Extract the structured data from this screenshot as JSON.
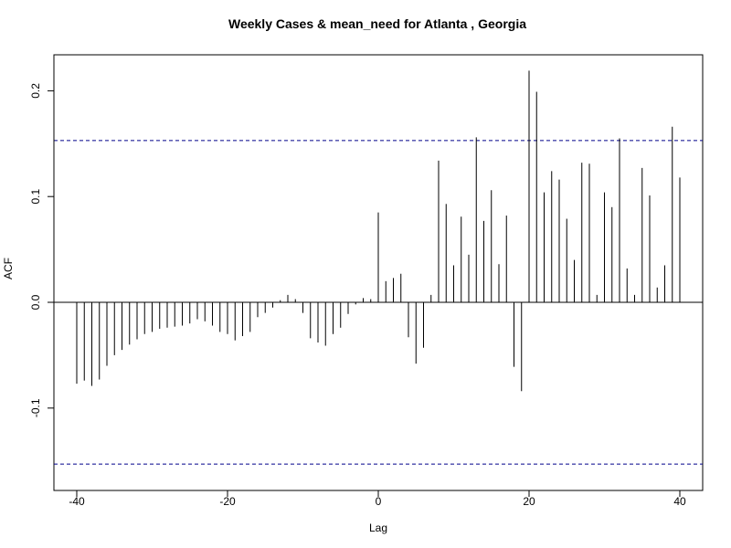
{
  "chart_data": {
    "type": "bar",
    "title": "Weekly Cases & mean_need for Atlanta , Georgia",
    "xlabel": "Lag",
    "ylabel": "ACF",
    "xlim": [
      -40,
      40
    ],
    "ylim": [
      -0.1695,
      0.2165
    ],
    "x_ticks": [
      -40,
      -20,
      0,
      20,
      40
    ],
    "y_ticks": [
      -0.1,
      0.0,
      0.1,
      0.2
    ],
    "y_tick_labels": [
      "-0.1",
      "0.0",
      "0.1",
      "0.2"
    ],
    "confidence_limits": [
      0.153,
      -0.153
    ],
    "confidence_line_color": "#00008b",
    "x": [
      -40,
      -39,
      -38,
      -37,
      -36,
      -35,
      -34,
      -33,
      -32,
      -31,
      -30,
      -29,
      -28,
      -27,
      -26,
      -25,
      -24,
      -23,
      -22,
      -21,
      -20,
      -19,
      -18,
      -17,
      -16,
      -15,
      -14,
      -13,
      -12,
      -11,
      -10,
      -9,
      -8,
      -7,
      -6,
      -5,
      -4,
      -3,
      -2,
      -1,
      0,
      1,
      2,
      3,
      4,
      5,
      6,
      7,
      8,
      9,
      10,
      11,
      12,
      13,
      14,
      15,
      16,
      17,
      18,
      19,
      20,
      21,
      22,
      23,
      24,
      25,
      26,
      27,
      28,
      29,
      30,
      31,
      32,
      33,
      34,
      35,
      36,
      37,
      38,
      39,
      40
    ],
    "values": [
      -0.077,
      -0.074,
      -0.079,
      -0.073,
      -0.06,
      -0.05,
      -0.045,
      -0.04,
      -0.035,
      -0.03,
      -0.028,
      -0.025,
      -0.024,
      -0.023,
      -0.022,
      -0.02,
      -0.016,
      -0.018,
      -0.022,
      -0.028,
      -0.03,
      -0.036,
      -0.032,
      -0.028,
      -0.014,
      -0.01,
      -0.005,
      0.002,
      0.007,
      0.003,
      -0.01,
      -0.034,
      -0.038,
      -0.041,
      -0.03,
      -0.024,
      -0.011,
      -0.002,
      0.004,
      0.003,
      0.085,
      0.02,
      0.023,
      0.027,
      -0.033,
      -0.058,
      -0.043,
      0.007,
      0.134,
      0.093,
      0.035,
      0.081,
      0.045,
      0.156,
      0.077,
      0.106,
      0.036,
      0.082,
      -0.061,
      -0.084,
      0.219,
      0.199,
      0.104,
      0.124,
      0.116,
      0.079,
      0.04,
      0.132,
      0.131,
      0.007,
      0.104,
      0.09,
      0.155,
      0.032,
      0.007,
      0.127,
      0.101,
      0.014,
      0.035,
      0.166,
      0.118
    ]
  }
}
